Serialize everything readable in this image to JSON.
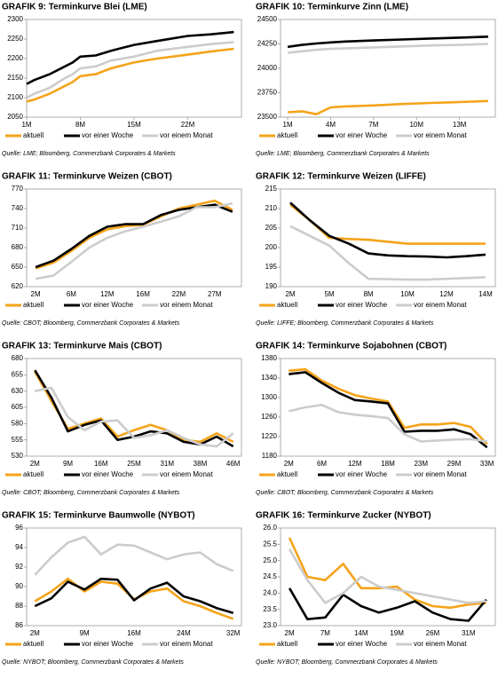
{
  "chart_data": [
    {
      "type": "line",
      "title": "GRAFIK 9: Terminkurve Blei (LME)",
      "source": "Quelle: LME; Bloomberg, Commerzbank Corporates & Markets",
      "x": [
        1,
        2,
        4,
        6,
        7,
        8,
        10,
        12,
        15,
        18,
        22,
        25,
        28
      ],
      "xlim": [
        1,
        29
      ],
      "xticks": [
        {
          "value": 1,
          "label": "1M"
        },
        {
          "value": 8,
          "label": "8M"
        },
        {
          "value": 15,
          "label": "15M"
        },
        {
          "value": 22,
          "label": "22M"
        }
      ],
      "ylim": [
        2050,
        2300
      ],
      "yticks": [
        2050,
        2100,
        2150,
        2200,
        2250,
        2300
      ],
      "series": [
        {
          "name": "aktuell",
          "color": "#f5a31a",
          "values": [
            2090,
            2095,
            2110,
            2130,
            2140,
            2155,
            2160,
            2175,
            2190,
            2200,
            2210,
            2218,
            2225
          ]
        },
        {
          "name": "vor einer Woche",
          "color": "#000000",
          "values": [
            2135,
            2145,
            2160,
            2180,
            2190,
            2205,
            2208,
            2220,
            2235,
            2245,
            2258,
            2262,
            2268
          ]
        },
        {
          "name": "vor einem Monat",
          "color": "#cccccc",
          "values": [
            2100,
            2110,
            2125,
            2150,
            2160,
            2175,
            2180,
            2195,
            2205,
            2220,
            2230,
            2237,
            2242
          ]
        }
      ]
    },
    {
      "type": "line",
      "title": "GRAFIK 10: Terminkurve Zinn (LME)",
      "source": "Quelle: LME; Bloomberg, Commerzbank Corporates & Markets",
      "x": [
        1,
        2,
        3,
        4,
        5,
        7,
        9,
        11,
        13,
        15
      ],
      "xlim": [
        0.5,
        15.5
      ],
      "xticks": [
        {
          "value": 1,
          "label": "1M"
        },
        {
          "value": 4,
          "label": "4M"
        },
        {
          "value": 7,
          "label": "7M"
        },
        {
          "value": 10,
          "label": "10M"
        },
        {
          "value": 13,
          "label": "13M"
        }
      ],
      "ylim": [
        23500,
        24500
      ],
      "yticks": [
        23500,
        23750,
        24000,
        24250,
        24500
      ],
      "series": [
        {
          "name": "aktuell",
          "color": "#f5a31a",
          "values": [
            23550,
            23560,
            23530,
            23600,
            23610,
            23620,
            23635,
            23645,
            23655,
            23665
          ]
        },
        {
          "name": "vor einer Woche",
          "color": "#000000",
          "values": [
            24220,
            24240,
            24255,
            24265,
            24275,
            24285,
            24295,
            24305,
            24315,
            24325
          ]
        },
        {
          "name": "vor einem Monat",
          "color": "#cccccc",
          "values": [
            24160,
            24175,
            24190,
            24200,
            24205,
            24215,
            24225,
            24235,
            24240,
            24250
          ]
        }
      ]
    },
    {
      "type": "line",
      "title": "GRAFIK 11: Terminkurve Weizen (CBOT)",
      "source": "Quelle: CBOT; Bloomberg, Commerzbank Corporates & Markets",
      "categories": [
        "2M",
        null,
        "6M",
        null,
        "12M",
        null,
        "16M",
        null,
        "22M",
        null,
        "27M",
        null
      ],
      "ylim": [
        620,
        770
      ],
      "yticks": [
        620,
        650,
        680,
        710,
        740,
        770
      ],
      "series": [
        {
          "name": "aktuell",
          "color": "#f5a31a",
          "values": [
            648,
            657,
            675,
            695,
            708,
            713,
            715,
            728,
            740,
            746,
            752,
            738
          ]
        },
        {
          "name": "vor einer Woche",
          "color": "#000000",
          "values": [
            650,
            660,
            678,
            698,
            712,
            716,
            716,
            730,
            738,
            742,
            746,
            735
          ]
        },
        {
          "name": "vor einem Monat",
          "color": "#cccccc",
          "values": [
            632,
            637,
            658,
            680,
            695,
            705,
            712,
            720,
            728,
            742,
            742,
            748
          ]
        }
      ]
    },
    {
      "type": "line",
      "title": "GRAFIK 12: Terminkurve Weizen (LIFFE)",
      "source": "Quelle: LIFFE; Bloomberg, Commerzbank Corporates & Markets",
      "categories": [
        "2M",
        null,
        "5M",
        null,
        "8M",
        null,
        "10M",
        null,
        "12M",
        null,
        "14M"
      ],
      "ylim": [
        190,
        215
      ],
      "yticks": [
        190,
        195,
        200,
        205,
        210,
        215
      ],
      "series": [
        {
          "name": "aktuell",
          "color": "#f5a31a",
          "values": [
            211,
            207,
            202.5,
            202.2,
            202,
            201.5,
            201,
            201,
            201,
            201,
            201
          ]
        },
        {
          "name": "vor einer Woche",
          "color": "#000000",
          "values": [
            211.5,
            207,
            203,
            201,
            198.5,
            198,
            197.8,
            197.7,
            197.5,
            197.8,
            198.2
          ]
        },
        {
          "name": "vor einem Monat",
          "color": "#cccccc",
          "values": [
            205.5,
            203,
            200.5,
            196,
            192,
            191.9,
            191.8,
            191.8,
            192,
            192.2,
            192.4
          ]
        }
      ]
    },
    {
      "type": "line",
      "title": "GRAFIK 13: Terminkurve Mais (CBOT)",
      "source": "Quelle: CBOT; Bloomberg, Commerzbank Corporates & Markets",
      "categories": [
        "2M",
        null,
        "9M",
        null,
        "16M",
        null,
        "25M",
        null,
        "31M",
        null,
        "38M",
        null,
        "46M"
      ],
      "ylim": [
        530,
        680
      ],
      "yticks": [
        530,
        555,
        580,
        605,
        630,
        655,
        680
      ],
      "series": [
        {
          "name": "aktuell",
          "color": "#f5a31a",
          "values": [
            660,
            615,
            572,
            580,
            588,
            560,
            570,
            578,
            570,
            555,
            552,
            565,
            552
          ]
        },
        {
          "name": "vor einer Woche",
          "color": "#000000",
          "values": [
            662,
            620,
            568,
            578,
            585,
            555,
            560,
            568,
            565,
            552,
            548,
            560,
            545
          ]
        },
        {
          "name": "vor einem Monat",
          "color": "#cccccc",
          "values": [
            630,
            635,
            590,
            570,
            583,
            585,
            558,
            562,
            570,
            558,
            548,
            545,
            565
          ]
        }
      ]
    },
    {
      "type": "line",
      "title": "GRAFIK 14: Terminkurve Sojabohnen (CBOT)",
      "source": "Quelle: CBOT; Bloomberg, Commerzbank Corporates & Markets",
      "categories": [
        "2M",
        null,
        "6M",
        null,
        "12M",
        null,
        "18M",
        null,
        "23M",
        null,
        "29M",
        null,
        "33M"
      ],
      "ylim": [
        1180,
        1380
      ],
      "yticks": [
        1180,
        1220,
        1260,
        1300,
        1340,
        1380
      ],
      "series": [
        {
          "name": "aktuell",
          "color": "#f5a31a",
          "values": [
            1355,
            1358,
            1335,
            1318,
            1305,
            1298,
            1292,
            1238,
            1245,
            1245,
            1248,
            1240,
            1205
          ]
        },
        {
          "name": "vor einer Woche",
          "color": "#000000",
          "values": [
            1348,
            1352,
            1330,
            1310,
            1295,
            1292,
            1288,
            1230,
            1232,
            1232,
            1235,
            1225,
            1198
          ]
        },
        {
          "name": "vor einem Monat",
          "color": "#cccccc",
          "values": [
            1272,
            1280,
            1285,
            1270,
            1265,
            1262,
            1258,
            1225,
            1210,
            1212,
            1214,
            1215,
            1210
          ]
        }
      ]
    },
    {
      "type": "line",
      "title": "GRAFIK 15: Terminkurve Baumwolle (NYBOT)",
      "source": "Quelle: NYBOT; Bloomberg, Commerzbank Corporates & Markets",
      "categories": [
        "2M",
        null,
        null,
        "9M",
        null,
        null,
        "16M",
        null,
        null,
        "24M",
        null,
        null,
        "32M"
      ],
      "ylim": [
        86,
        96
      ],
      "yticks": [
        86,
        88,
        90,
        92,
        94,
        96
      ],
      "series": [
        {
          "name": "aktuell",
          "color": "#f5a31a",
          "values": [
            88.5,
            89.5,
            90.8,
            89.5,
            90.5,
            90.3,
            88.7,
            89.5,
            89.8,
            88.5,
            88,
            87.3,
            86.7
          ]
        },
        {
          "name": "vor einer Woche",
          "color": "#000000",
          "values": [
            88,
            88.8,
            90.5,
            89.7,
            90.8,
            90.7,
            88.6,
            89.8,
            90.4,
            89,
            88.5,
            87.8,
            87.3
          ]
        },
        {
          "name": "vor einem Monat",
          "color": "#cccccc",
          "values": [
            91.2,
            93,
            94.5,
            95.1,
            93.3,
            94.3,
            94.2,
            93.5,
            92.8,
            93.3,
            93.5,
            92.3,
            91.6
          ]
        }
      ]
    },
    {
      "type": "line",
      "title": "GRAFIK 16: Terminkurve Zucker (NYBOT)",
      "source": "Quelle: NYBOT; Bloomberg, Commerzbank Corporates & Markets",
      "categories": [
        "2M",
        null,
        "7M",
        null,
        "14M",
        null,
        "19M",
        null,
        "26M",
        null,
        "31M",
        null
      ],
      "ylim": [
        23,
        26
      ],
      "yticks": [
        {
          "value": 23,
          "label": "23.0"
        },
        23.5,
        {
          "value": 24,
          "label": "24.0"
        },
        24.5,
        {
          "value": 25,
          "label": "25.0"
        },
        25.5,
        {
          "value": 26,
          "label": "26.0"
        }
      ],
      "series": [
        {
          "name": "aktuell",
          "color": "#f5a31a",
          "values": [
            25.7,
            24.5,
            24.4,
            24.9,
            24.15,
            24.15,
            24.2,
            23.8,
            23.6,
            23.55,
            23.65,
            23.7
          ]
        },
        {
          "name": "vor einer Woche",
          "color": "#000000",
          "values": [
            24.15,
            23.2,
            23.25,
            23.95,
            23.6,
            23.4,
            23.55,
            23.75,
            23.4,
            23.2,
            23.15,
            23.8
          ]
        },
        {
          "name": "vor einem Monat",
          "color": "#cccccc",
          "values": [
            25.35,
            24.4,
            23.7,
            24,
            24.5,
            24.2,
            24.1,
            24,
            23.9,
            23.8,
            23.7,
            23.75
          ]
        }
      ]
    }
  ]
}
